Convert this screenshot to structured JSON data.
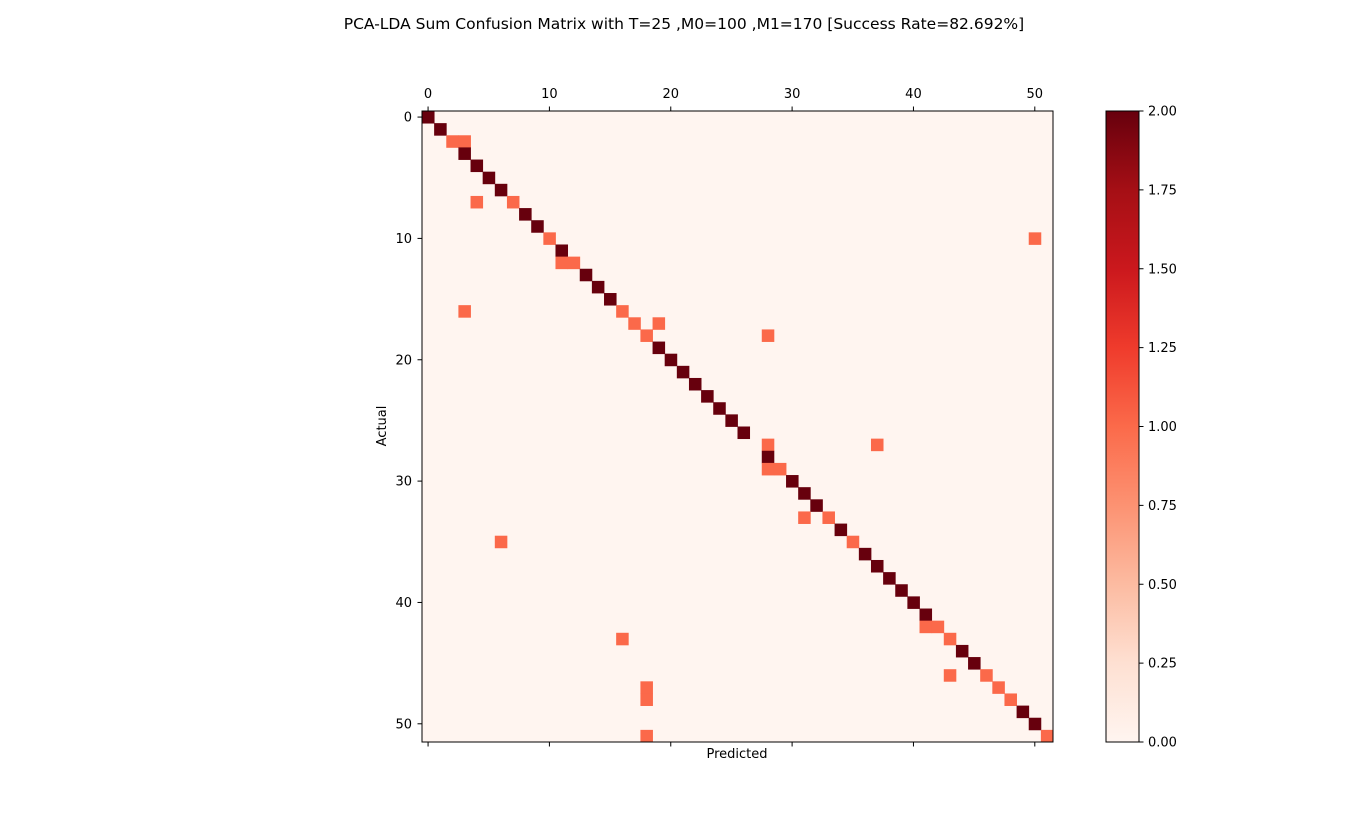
{
  "chart_data": {
    "type": "heatmap",
    "title": "PCA-LDA Sum Confusion Matrix with T=25 ,M0=100 ,M1=170 [Success Rate=82.692%]",
    "xlabel": "Predicted",
    "ylabel": "Actual",
    "n_classes": 52,
    "xlim": [
      -0.5,
      51.5
    ],
    "ylim": [
      51.5,
      -0.5
    ],
    "x_ticks": [
      0,
      10,
      20,
      30,
      40,
      50
    ],
    "y_ticks": [
      0,
      10,
      20,
      30,
      40,
      50
    ],
    "x_tick_position": "top",
    "colormap": "Reds",
    "colorbar": {
      "vmin": 0.0,
      "vmax": 2.0,
      "ticks": [
        "0.00",
        "0.25",
        "0.50",
        "0.75",
        "1.00",
        "1.25",
        "1.50",
        "1.75",
        "2.00"
      ]
    },
    "background_value": 0,
    "cells": [
      [
        0,
        0,
        2
      ],
      [
        1,
        1,
        2
      ],
      [
        2,
        2,
        1
      ],
      [
        2,
        3,
        1
      ],
      [
        3,
        3,
        2
      ],
      [
        4,
        4,
        2
      ],
      [
        5,
        5,
        2
      ],
      [
        6,
        6,
        2
      ],
      [
        7,
        4,
        1
      ],
      [
        7,
        7,
        1
      ],
      [
        8,
        8,
        2
      ],
      [
        9,
        9,
        2
      ],
      [
        10,
        10,
        1
      ],
      [
        10,
        50,
        1
      ],
      [
        11,
        11,
        2
      ],
      [
        12,
        11,
        1
      ],
      [
        12,
        12,
        1
      ],
      [
        13,
        13,
        2
      ],
      [
        14,
        14,
        2
      ],
      [
        15,
        15,
        2
      ],
      [
        16,
        3,
        1
      ],
      [
        16,
        16,
        1
      ],
      [
        17,
        17,
        1
      ],
      [
        17,
        19,
        1
      ],
      [
        18,
        18,
        1
      ],
      [
        18,
        28,
        1
      ],
      [
        19,
        19,
        2
      ],
      [
        20,
        20,
        2
      ],
      [
        21,
        21,
        2
      ],
      [
        22,
        22,
        2
      ],
      [
        23,
        23,
        2
      ],
      [
        24,
        24,
        2
      ],
      [
        25,
        25,
        2
      ],
      [
        26,
        26,
        2
      ],
      [
        27,
        28,
        1
      ],
      [
        27,
        37,
        1
      ],
      [
        28,
        28,
        2
      ],
      [
        29,
        28,
        1
      ],
      [
        29,
        29,
        1
      ],
      [
        30,
        30,
        2
      ],
      [
        31,
        31,
        2
      ],
      [
        32,
        32,
        2
      ],
      [
        33,
        31,
        1
      ],
      [
        33,
        33,
        1
      ],
      [
        34,
        34,
        2
      ],
      [
        35,
        6,
        1
      ],
      [
        35,
        35,
        1
      ],
      [
        36,
        36,
        2
      ],
      [
        37,
        37,
        2
      ],
      [
        38,
        38,
        2
      ],
      [
        39,
        39,
        2
      ],
      [
        40,
        40,
        2
      ],
      [
        41,
        41,
        2
      ],
      [
        42,
        41,
        1
      ],
      [
        42,
        42,
        1
      ],
      [
        43,
        16,
        1
      ],
      [
        43,
        43,
        1
      ],
      [
        44,
        44,
        2
      ],
      [
        45,
        45,
        2
      ],
      [
        46,
        43,
        1
      ],
      [
        46,
        46,
        1
      ],
      [
        47,
        18,
        1
      ],
      [
        47,
        47,
        1
      ],
      [
        48,
        18,
        1
      ],
      [
        48,
        48,
        1
      ],
      [
        49,
        49,
        2
      ],
      [
        50,
        50,
        2
      ],
      [
        51,
        18,
        1
      ],
      [
        51,
        51,
        1
      ]
    ],
    "colors": {
      "zero": "#fff5f0",
      "one": "#fb694a",
      "two": "#67000d"
    }
  }
}
